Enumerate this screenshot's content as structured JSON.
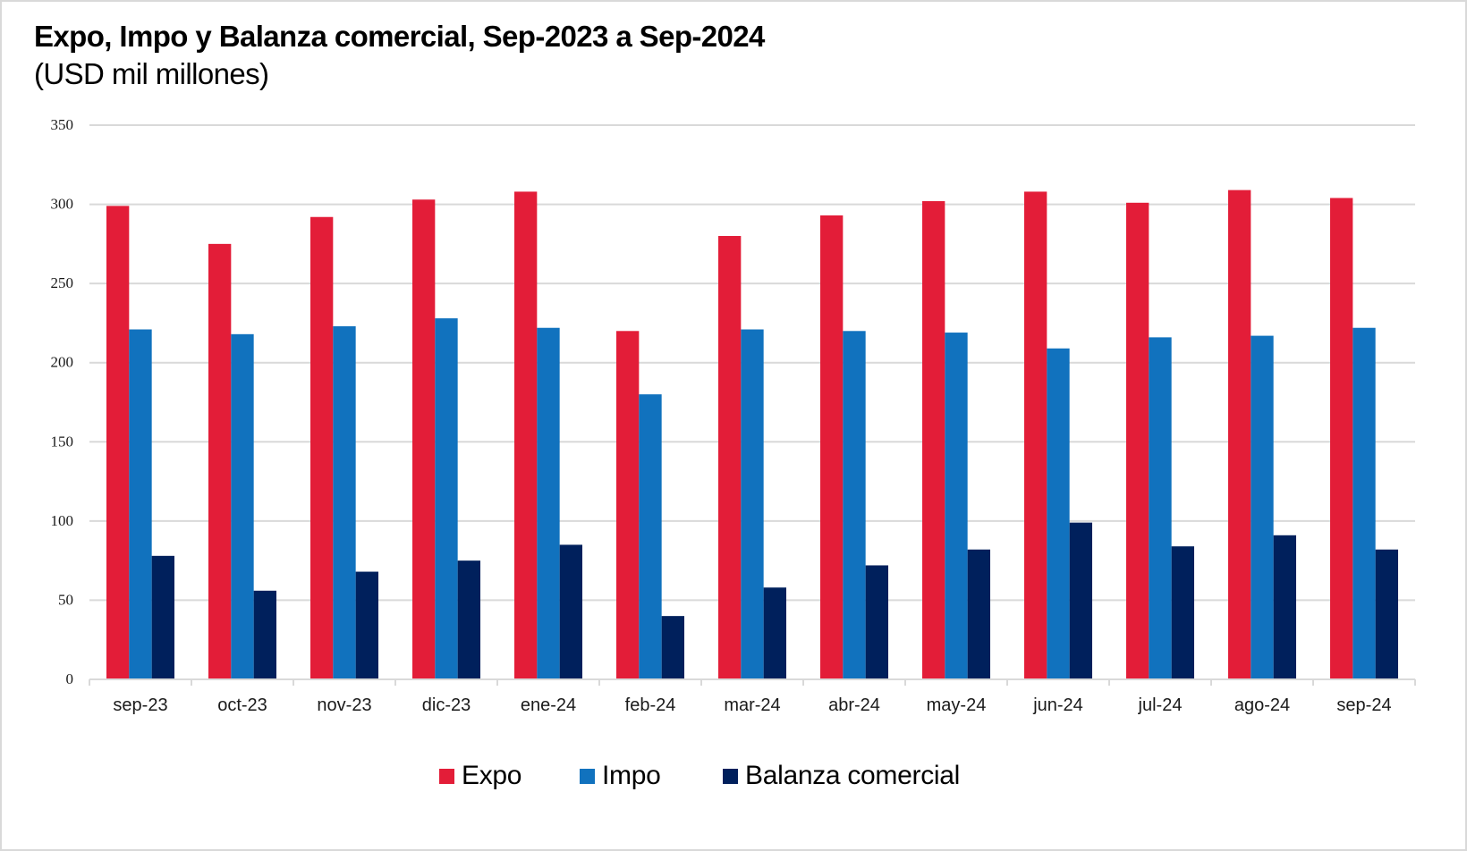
{
  "header": {
    "title": "Expo, Impo y Balanza comercial, Sep-2023 a Sep-2024",
    "subtitle": "(USD mil millones)"
  },
  "chart_data": {
    "type": "bar",
    "title": "Expo, Impo y Balanza comercial, Sep-2023 a Sep-2024",
    "subtitle": "(USD mil millones)",
    "xlabel": "",
    "ylabel": "",
    "ylim": [
      0,
      350
    ],
    "yticks": [
      0,
      50,
      100,
      150,
      200,
      250,
      300,
      350
    ],
    "grid": true,
    "legend_position": "bottom",
    "categories": [
      "sep-23",
      "oct-23",
      "nov-23",
      "dic-23",
      "ene-24",
      "feb-24",
      "mar-24",
      "abr-24",
      "may-24",
      "jun-24",
      "jul-24",
      "ago-24",
      "sep-24"
    ],
    "series": [
      {
        "name": "Expo",
        "color": "#E31D38",
        "values": [
          299,
          275,
          292,
          303,
          308,
          220,
          280,
          293,
          302,
          308,
          301,
          309,
          304
        ]
      },
      {
        "name": "Impo",
        "color": "#1172BE",
        "values": [
          221,
          218,
          223,
          228,
          222,
          180,
          221,
          220,
          219,
          209,
          216,
          217,
          222
        ]
      },
      {
        "name": "Balanza comercial",
        "color": "#00205C",
        "values": [
          78,
          56,
          68,
          75,
          85,
          40,
          58,
          72,
          82,
          99,
          84,
          91,
          82
        ]
      }
    ]
  },
  "colors": {
    "gridline": "#d9d9d9",
    "axis": "#d9d9d9",
    "text": "#1a1a1a"
  }
}
